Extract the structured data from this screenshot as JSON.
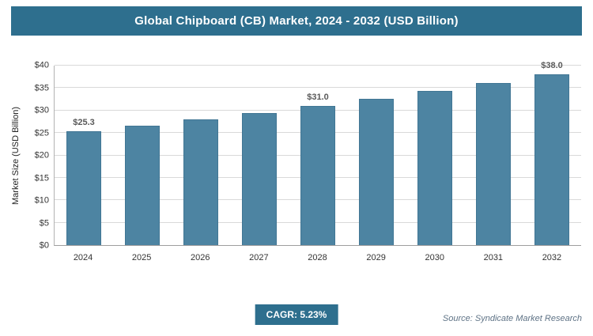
{
  "header": {
    "title": "Global Chipboard (CB) Market, 2024 - 2032 (USD Billion)"
  },
  "chart_data": {
    "type": "bar",
    "title": "Global Chipboard (CB) Market, 2024 - 2032 (USD Billion)",
    "xlabel": "",
    "ylabel": "Market Size (USD Billion)",
    "ylim": [
      0,
      40
    ],
    "ytick_step": 5,
    "ytick_labels": [
      "$0",
      "$5",
      "$10",
      "$15",
      "$20",
      "$25",
      "$30",
      "$35",
      "$40"
    ],
    "categories": [
      "2024",
      "2025",
      "2026",
      "2027",
      "2028",
      "2029",
      "2030",
      "2031",
      "2032"
    ],
    "values": [
      25.3,
      26.6,
      28.0,
      29.4,
      31.0,
      32.6,
      34.3,
      36.1,
      38.0
    ],
    "data_labels": [
      "$25.3",
      null,
      null,
      null,
      "$31.0",
      null,
      null,
      null,
      "$38.0"
    ],
    "bar_color": "#4d84a2",
    "grid": true,
    "legend_position": "none"
  },
  "footer": {
    "cagr_label": "CAGR: 5.23%",
    "source": "Source: Syndicate Market Research"
  },
  "colors": {
    "accent": "#2e6f8e",
    "bar": "#4d84a2",
    "gridline": "#d9d9d9",
    "data_label": "#595959"
  }
}
